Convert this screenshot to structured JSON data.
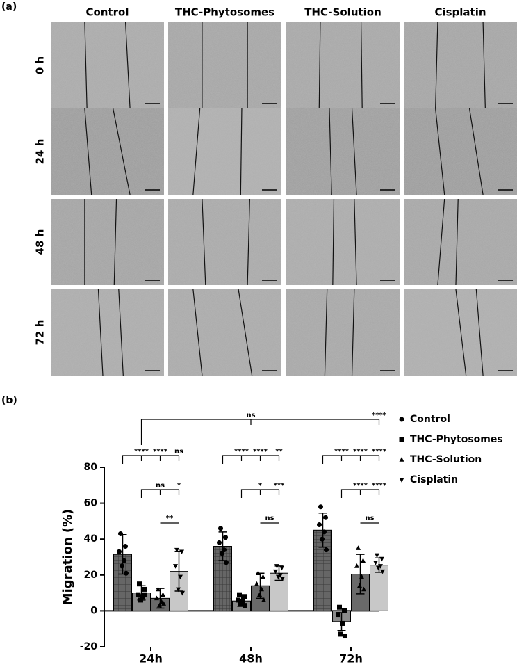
{
  "panel_a": {
    "label": "(a)",
    "columns": [
      "Control",
      "THC-Phytosomes",
      "THC-Solution",
      "Cisplatin"
    ],
    "rows": [
      "0 h",
      "24 h",
      "48 h",
      "72 h"
    ]
  },
  "chart_data": {
    "type": "bar",
    "label": "(b)",
    "y_label": "Migration (%)",
    "categories": [
      "24h",
      "48h",
      "72h"
    ],
    "ylim": [
      -20,
      80
    ],
    "yticks": [
      -20,
      0,
      20,
      40,
      60,
      80
    ],
    "legend": "right",
    "series": [
      {
        "name": "Control",
        "color": "#666666",
        "hatch": "grid",
        "marker": "circle",
        "values": [
          31.5,
          36,
          45
        ],
        "errors": [
          11,
          8,
          9.5
        ],
        "points": [
          [
            43,
            36,
            33,
            28,
            25,
            21
          ],
          [
            46,
            41,
            38,
            34,
            32,
            27
          ],
          [
            58,
            52,
            48,
            44,
            40,
            34
          ]
        ]
      },
      {
        "name": "THC-Phytosomes",
        "color": "#8a8a8a",
        "marker": "square",
        "values": [
          10,
          5.5,
          -6
        ],
        "errors": [
          4,
          3,
          5
        ],
        "points": [
          [
            15,
            12,
            9,
            8,
            6,
            9
          ],
          [
            9,
            8,
            6,
            5,
            4,
            3
          ],
          [
            2,
            0,
            -2,
            -7,
            -13,
            -14
          ]
        ]
      },
      {
        "name": "THC-Solution",
        "color": "#6a6a6a",
        "marker": "triangle",
        "values": [
          7,
          14,
          20.5
        ],
        "errors": [
          5.5,
          7,
          11
        ],
        "points": [
          [
            12,
            9,
            7,
            5,
            3,
            4
          ],
          [
            21,
            19,
            15,
            12,
            9,
            6
          ],
          [
            35,
            28,
            25,
            19,
            14,
            12
          ]
        ]
      },
      {
        "name": "Cisplatin",
        "color": "#c8c8c8",
        "marker": "triangle-down",
        "values": [
          22,
          21,
          25.5
        ],
        "errors": [
          11,
          4,
          4
        ],
        "points": [
          [
            34,
            33,
            25,
            19,
            12,
            10
          ],
          [
            25,
            24,
            22,
            20,
            19,
            18
          ],
          [
            31,
            29,
            27,
            25,
            24,
            22
          ]
        ]
      }
    ],
    "annotations": [
      [
        "****",
        "****",
        "ns",
        "ns",
        "*",
        "**"
      ],
      [
        "****",
        "****",
        "**",
        "*",
        "***",
        "ns"
      ],
      [
        "****",
        "****",
        "****",
        "****",
        "****",
        "ns"
      ]
    ],
    "top_annotations": [
      "ns",
      "****"
    ]
  }
}
